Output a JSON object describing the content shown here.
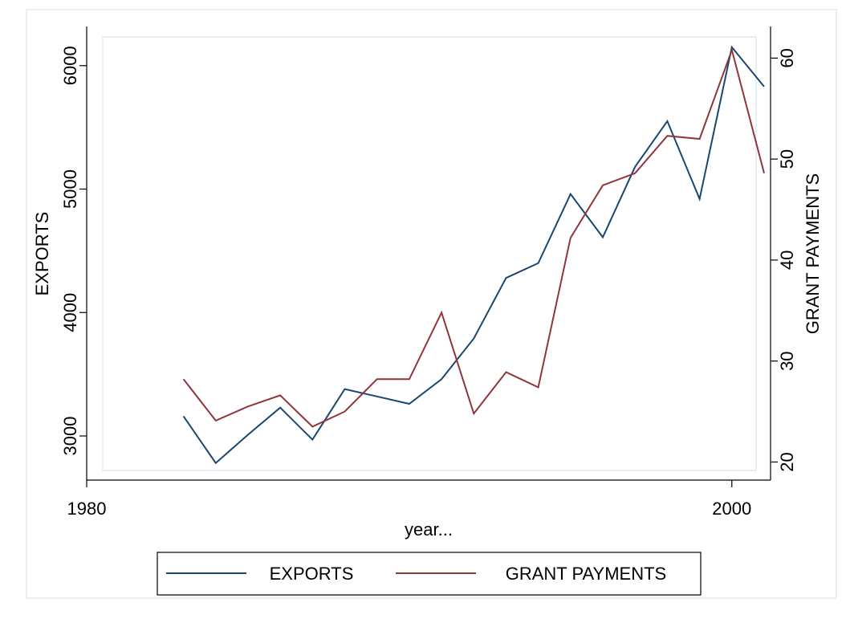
{
  "chart_data": {
    "type": "line",
    "title": "",
    "xlabel": "year...",
    "ylabel_left": "EXPORTS",
    "ylabel_right": "GRANT PAYMENTS",
    "xlim": [
      1980,
      2001.2
    ],
    "ylim_left": [
      2740,
      6200
    ],
    "ylim_right": [
      19.4,
      61.7
    ],
    "x_ticks": [
      1980,
      2000
    ],
    "y_ticks_left": [
      3000,
      4000,
      5000,
      6000
    ],
    "y_ticks_right": [
      20,
      30,
      40,
      50,
      60
    ],
    "grid": false,
    "legend_position": "bottom",
    "colors": {
      "EXPORTS": "#1a476f",
      "GRANT PAYMENTS": "#90353b"
    },
    "series": [
      {
        "name": "EXPORTS",
        "axis": "left",
        "x": [
          1983,
          1984,
          1985,
          1986,
          1987,
          1988,
          1989,
          1990,
          1991,
          1992,
          1993,
          1994,
          1995,
          1996,
          1997,
          1998,
          1999,
          2000,
          2001
        ],
        "values": [
          3160,
          2780,
          3010,
          3230,
          2970,
          3380,
          3320,
          3260,
          3460,
          3790,
          4280,
          4400,
          4960,
          4610,
          5180,
          5550,
          4920,
          6150,
          5830
        ]
      },
      {
        "name": "GRANT PAYMENTS",
        "axis": "right",
        "x": [
          1983,
          1984,
          1985,
          1986,
          1987,
          1988,
          1989,
          1990,
          1991,
          1992,
          1993,
          1994,
          1995,
          1996,
          1997,
          1998,
          1999,
          2000,
          2001
        ],
        "values": [
          28.2,
          24.1,
          25.5,
          26.6,
          23.5,
          25,
          28.2,
          28.2,
          34.8,
          24.8,
          28.9,
          27.4,
          42.2,
          47.4,
          48.6,
          52.3,
          52,
          60.8,
          48.6
        ]
      }
    ]
  }
}
